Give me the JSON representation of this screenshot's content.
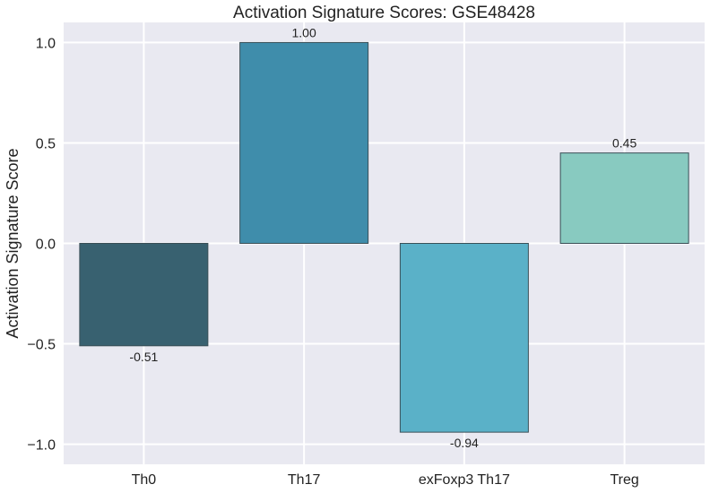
{
  "chart_data": {
    "type": "bar",
    "title": "Activation Signature Scores: GSE48428",
    "xlabel": "",
    "ylabel": "Activation Signature Score",
    "categories": [
      "Th0",
      "Th17",
      "exFoxp3 Th17",
      "Treg"
    ],
    "values": [
      -0.51,
      1.0,
      -0.94,
      0.45
    ],
    "value_labels": [
      "-0.51",
      "1.00",
      "-0.94",
      "0.45"
    ],
    "colors": [
      "#386170",
      "#3f8dab",
      "#5ab1c8",
      "#88cac0"
    ],
    "ylim": [
      -1.1,
      1.1
    ],
    "yticks": [
      -1.0,
      -0.5,
      0.0,
      0.5,
      1.0
    ],
    "ytick_labels": [
      "−1.0",
      "−0.5",
      "0.0",
      "0.5",
      "1.0"
    ],
    "grid": true,
    "background_color": "#e9e9f1"
  }
}
